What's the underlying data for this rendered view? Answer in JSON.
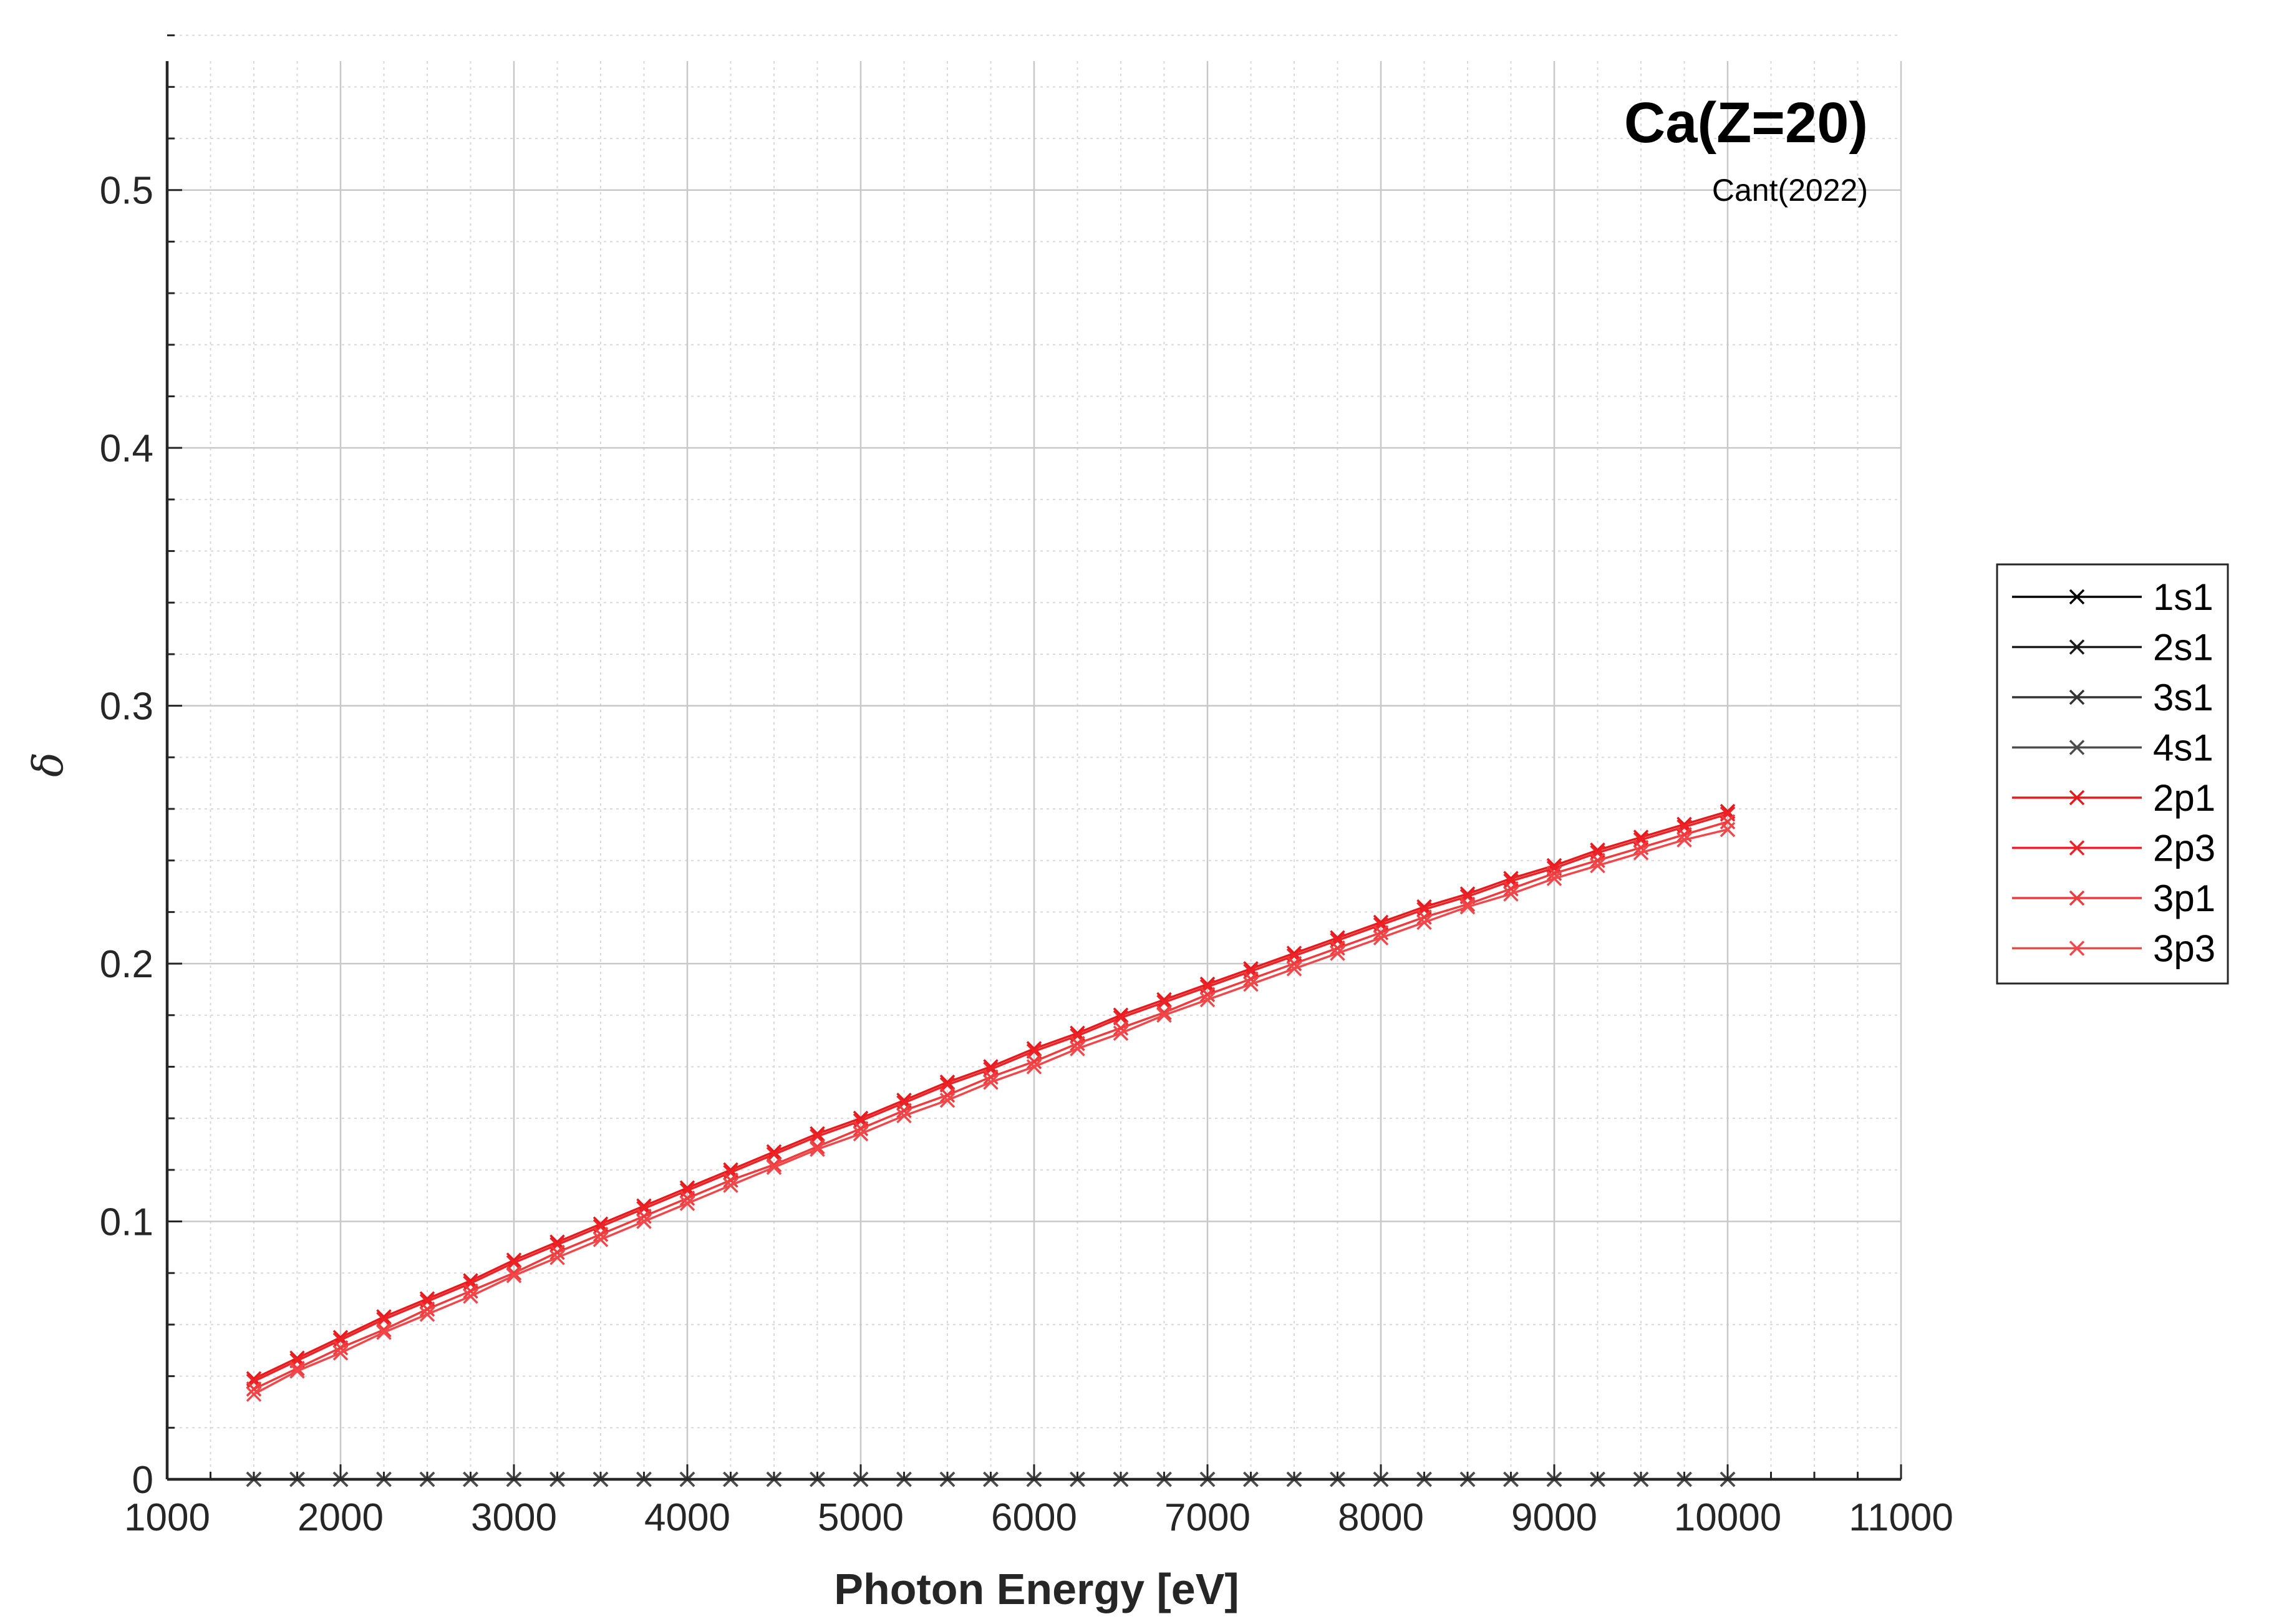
{
  "chart_data": {
    "type": "line",
    "title": "Ca(Z=20)",
    "subtitle": "Cant(2022)",
    "xlabel": "Photon Energy [eV]",
    "ylabel": "δ",
    "xlim": [
      1000,
      11000
    ],
    "ylim": [
      0,
      0.55
    ],
    "xticks": [
      1000,
      2000,
      3000,
      4000,
      5000,
      6000,
      7000,
      8000,
      9000,
      10000,
      11000
    ],
    "xtick_labels": [
      "1000",
      "2000",
      "3000",
      "4000",
      "5000",
      "6000",
      "7000",
      "8000",
      "9000",
      "10000",
      "11000"
    ],
    "yticks": [
      0,
      0.1,
      0.2,
      0.3,
      0.4,
      0.5
    ],
    "ytick_labels": [
      "0",
      "0.1",
      "0.2",
      "0.3",
      "0.4",
      "0.5"
    ],
    "grid": true,
    "minor_grid": true,
    "legend_position": "outside-right",
    "marker": "x",
    "x": [
      1500,
      1750,
      2000,
      2250,
      2500,
      2750,
      3000,
      3250,
      3500,
      3750,
      4000,
      4250,
      4500,
      4750,
      5000,
      5250,
      5500,
      5750,
      6000,
      6250,
      6500,
      6750,
      7000,
      7250,
      7500,
      7750,
      8000,
      8250,
      8500,
      8750,
      9000,
      9250,
      9500,
      9750,
      10000
    ],
    "series": [
      {
        "name": "1s1",
        "color": "#000000",
        "values": [
          0,
          0,
          0,
          0,
          0,
          0,
          0,
          0,
          0,
          0,
          0,
          0,
          0,
          0,
          0,
          0,
          0,
          0,
          0,
          0,
          0,
          0,
          0,
          0,
          0,
          0,
          0,
          0,
          0,
          0,
          0,
          0,
          0,
          0,
          0
        ]
      },
      {
        "name": "2s1",
        "color": "#1a1a1a",
        "values": [
          0,
          0,
          0,
          0,
          0,
          0,
          0,
          0,
          0,
          0,
          0,
          0,
          0,
          0,
          0,
          0,
          0,
          0,
          0,
          0,
          0,
          0,
          0,
          0,
          0,
          0,
          0,
          0,
          0,
          0,
          0,
          0,
          0,
          0,
          0
        ]
      },
      {
        "name": "3s1",
        "color": "#333333",
        "values": [
          0,
          0,
          0,
          0,
          0,
          0,
          0,
          0,
          0,
          0,
          0,
          0,
          0,
          0,
          0,
          0,
          0,
          0,
          0,
          0,
          0,
          0,
          0,
          0,
          0,
          0,
          0,
          0,
          0,
          0,
          0,
          0,
          0,
          0,
          0
        ]
      },
      {
        "name": "4s1",
        "color": "#4d4d4d",
        "values": [
          0,
          0,
          0,
          0,
          0,
          0,
          0,
          0,
          0,
          0,
          0,
          0,
          0,
          0,
          0,
          0,
          0,
          0,
          0,
          0,
          0,
          0,
          0,
          0,
          0,
          0,
          0,
          0,
          0,
          0,
          0,
          0,
          0,
          0,
          0
        ]
      },
      {
        "name": "2p1",
        "color": "#e8191c",
        "values": [
          0.039,
          0.047,
          0.055,
          0.063,
          0.07,
          0.077,
          0.085,
          0.092,
          0.099,
          0.106,
          0.113,
          0.12,
          0.127,
          0.134,
          0.14,
          0.147,
          0.154,
          0.16,
          0.167,
          0.173,
          0.18,
          0.186,
          0.192,
          0.198,
          0.204,
          0.21,
          0.216,
          0.222,
          0.227,
          0.233,
          0.238,
          0.244,
          0.249,
          0.254,
          0.259
        ]
      },
      {
        "name": "2p3",
        "color": "#ec2326",
        "values": [
          0.038,
          0.046,
          0.054,
          0.062,
          0.069,
          0.076,
          0.084,
          0.091,
          0.098,
          0.105,
          0.112,
          0.119,
          0.126,
          0.133,
          0.139,
          0.146,
          0.153,
          0.159,
          0.166,
          0.172,
          0.179,
          0.185,
          0.191,
          0.197,
          0.203,
          0.209,
          0.215,
          0.221,
          0.226,
          0.232,
          0.237,
          0.243,
          0.248,
          0.253,
          0.258
        ]
      },
      {
        "name": "3p1",
        "color": "#f03a3c",
        "values": [
          0.035,
          0.043,
          0.051,
          0.058,
          0.066,
          0.073,
          0.08,
          0.088,
          0.095,
          0.102,
          0.109,
          0.116,
          0.122,
          0.129,
          0.136,
          0.143,
          0.149,
          0.156,
          0.162,
          0.169,
          0.175,
          0.181,
          0.188,
          0.194,
          0.2,
          0.206,
          0.212,
          0.218,
          0.223,
          0.229,
          0.235,
          0.24,
          0.245,
          0.25,
          0.255
        ]
      },
      {
        "name": "3p3",
        "color": "#f2474a",
        "values": [
          0.033,
          0.042,
          0.049,
          0.057,
          0.064,
          0.071,
          0.079,
          0.086,
          0.093,
          0.1,
          0.107,
          0.114,
          0.121,
          0.128,
          0.134,
          0.141,
          0.147,
          0.154,
          0.16,
          0.167,
          0.173,
          0.18,
          0.186,
          0.192,
          0.198,
          0.204,
          0.21,
          0.216,
          0.222,
          0.227,
          0.233,
          0.238,
          0.243,
          0.248,
          0.252
        ]
      }
    ]
  }
}
